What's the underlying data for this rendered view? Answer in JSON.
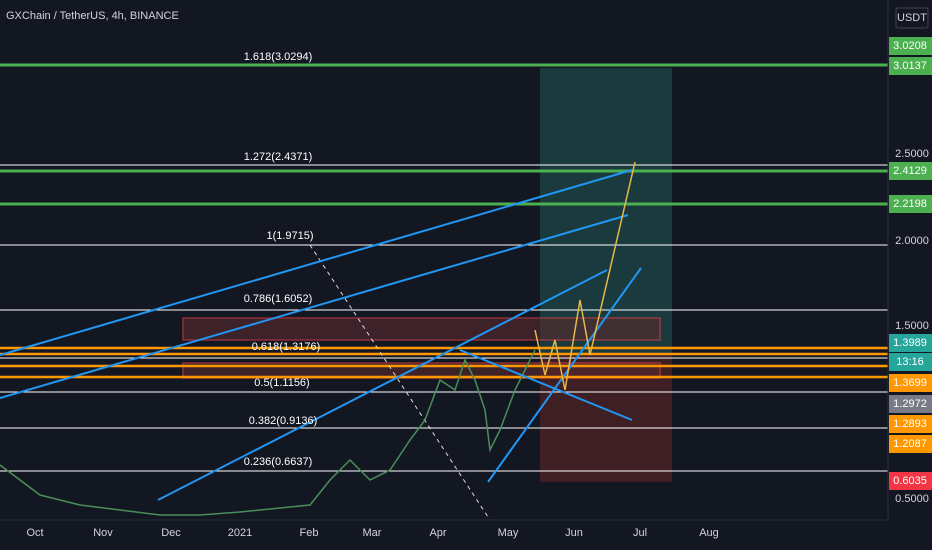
{
  "header": {
    "title": "GXChain / TetherUS, 4h, BINANCE"
  },
  "price_axis": {
    "unit": "USDT",
    "scale_labels": [
      "2.5000",
      "2.0000",
      "1.5000",
      "0.5000"
    ],
    "badges": [
      "3.0208",
      "3.0137",
      "2.4129",
      "2.2198",
      "1.3989",
      "13:16",
      "1.3699",
      "1.2972",
      "1.2893",
      "1.2087",
      "0.6035"
    ]
  },
  "fib_levels": [
    "1.618(3.0294)",
    "1.272(2.4371)",
    "1(1.9715)",
    "0.786(1.6052)",
    "0.618(1.3176)",
    "0.5(1.1156)",
    "0.382(0.9136)",
    "0.236(0.6637)"
  ],
  "time_axis": [
    "Oct",
    "Nov",
    "Dec",
    "2021",
    "Feb",
    "Mar",
    "Apr",
    "May",
    "Jun",
    "Jul",
    "Aug"
  ]
}
